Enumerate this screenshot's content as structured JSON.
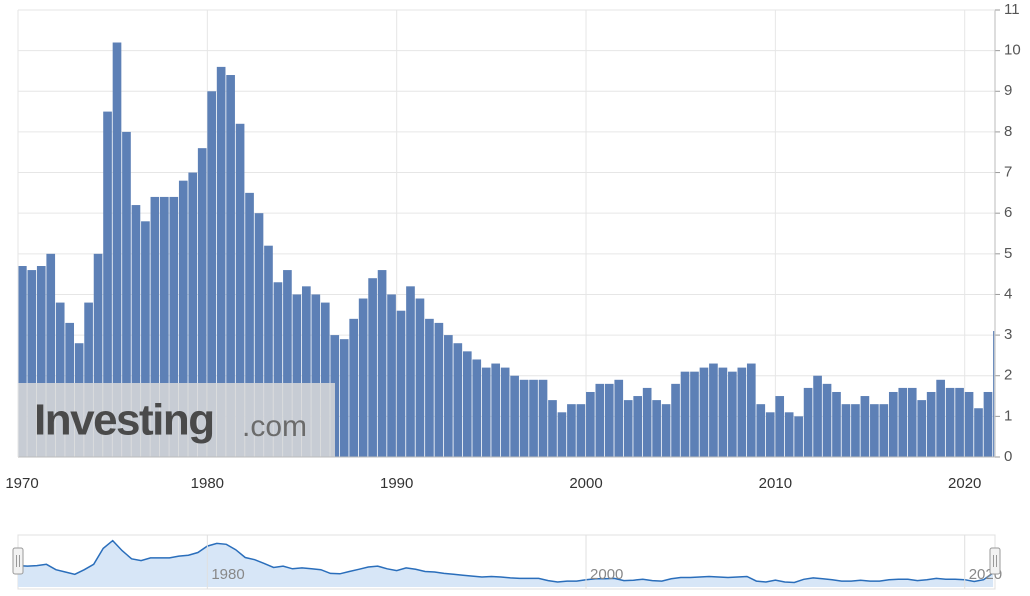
{
  "chart_data": {
    "type": "bar",
    "watermark": "Investing",
    "watermark_suffix": ".com",
    "color": "#5d80b6",
    "navigator_color": "#2a6ebb",
    "grid": true,
    "xlim": [
      1970,
      2021.6
    ],
    "xticks": [
      1970,
      1980,
      1990,
      2000,
      2010,
      2020
    ],
    "ylim": [
      0,
      11
    ],
    "yticks": [
      0,
      1,
      2,
      3,
      4,
      5,
      6,
      7,
      8,
      9,
      10,
      11
    ],
    "x": [
      1970,
      1970.5,
      1971,
      1971.5,
      1972,
      1972.5,
      1973,
      1973.5,
      1974,
      1974.5,
      1975,
      1975.5,
      1976,
      1976.5,
      1977,
      1977.5,
      1978,
      1978.5,
      1979,
      1979.5,
      1980,
      1980.5,
      1981,
      1981.5,
      1982,
      1982.5,
      1983,
      1983.5,
      1984,
      1984.5,
      1985,
      1985.5,
      1986,
      1986.5,
      1987,
      1987.5,
      1988,
      1988.5,
      1989,
      1989.5,
      1990,
      1990.5,
      1991,
      1991.5,
      1992,
      1992.5,
      1993,
      1993.5,
      1994,
      1994.5,
      1995,
      1995.5,
      1996,
      1996.5,
      1997,
      1997.5,
      1998,
      1998.5,
      1999,
      1999.5,
      2000,
      2000.5,
      2001,
      2001.5,
      2002,
      2002.5,
      2003,
      2003.5,
      2004,
      2004.5,
      2005,
      2005.5,
      2006,
      2006.5,
      2007,
      2007.5,
      2008,
      2008.5,
      2009,
      2009.5,
      2010,
      2010.5,
      2011,
      2011.5,
      2012,
      2012.5,
      2013,
      2013.5,
      2014,
      2014.5,
      2015,
      2015.5,
      2016,
      2016.5,
      2017,
      2017.5,
      2018,
      2018.5,
      2019,
      2019.5,
      2020,
      2020.5,
      2021,
      2021.5
    ],
    "values": [
      4.7,
      4.6,
      4.7,
      5.0,
      3.8,
      3.3,
      2.8,
      3.8,
      5.0,
      8.5,
      10.2,
      8.0,
      6.2,
      5.8,
      6.4,
      6.4,
      6.4,
      6.8,
      7.0,
      7.6,
      9.0,
      9.6,
      9.4,
      8.2,
      6.5,
      6.0,
      5.2,
      4.3,
      4.6,
      4.0,
      4.2,
      4.0,
      3.8,
      3.0,
      2.9,
      3.4,
      3.9,
      4.4,
      4.6,
      4.0,
      3.6,
      4.2,
      3.9,
      3.4,
      3.3,
      3.0,
      2.8,
      2.6,
      2.4,
      2.2,
      2.3,
      2.2,
      2.0,
      1.9,
      1.9,
      1.9,
      1.4,
      1.1,
      1.3,
      1.3,
      1.6,
      1.8,
      1.8,
      1.9,
      1.4,
      1.5,
      1.7,
      1.4,
      1.3,
      1.8,
      2.1,
      2.1,
      2.2,
      2.3,
      2.2,
      2.1,
      2.2,
      2.3,
      1.3,
      1.1,
      1.5,
      1.1,
      1.0,
      1.7,
      2.0,
      1.8,
      1.6,
      1.3,
      1.3,
      1.5,
      1.3,
      1.3,
      1.6,
      1.7,
      1.7,
      1.4,
      1.6,
      1.9,
      1.7,
      1.7,
      1.6,
      1.2,
      1.6,
      3.1
    ]
  }
}
